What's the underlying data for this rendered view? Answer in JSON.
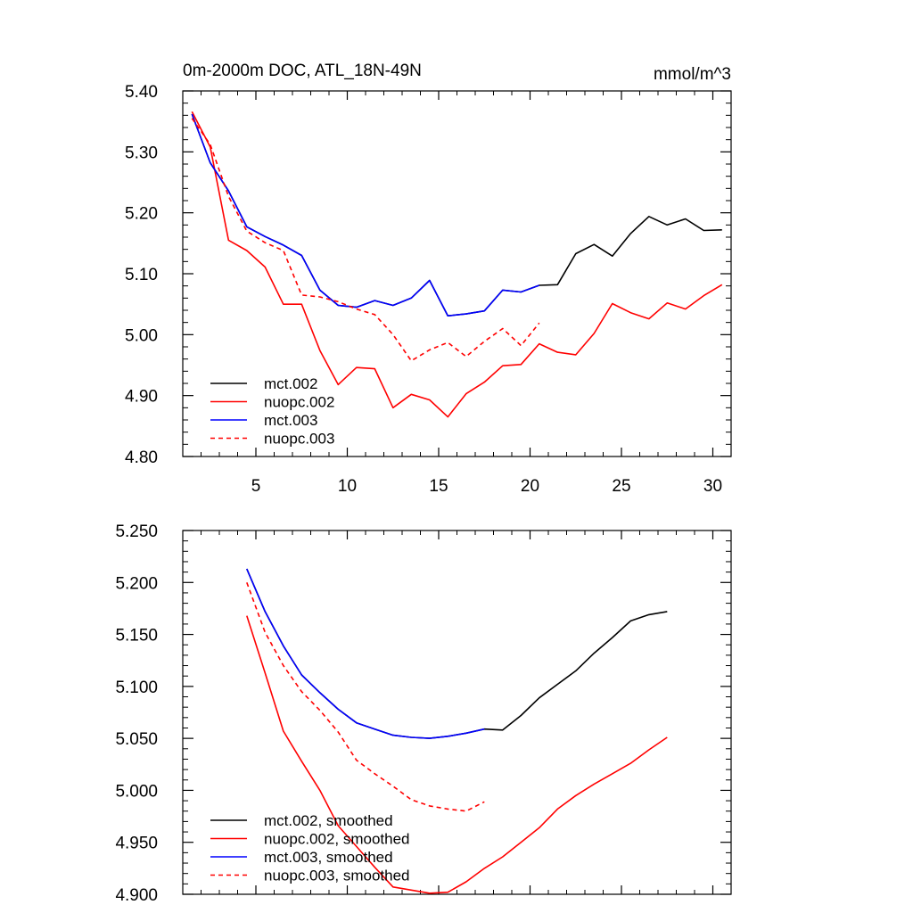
{
  "chart_data": [
    {
      "type": "line",
      "title": "0m-2000m DOC, ATL_18N-49N",
      "units_label": "mmol/m^3",
      "xlim": [
        1,
        31
      ],
      "ylim": [
        4.8,
        5.4
      ],
      "xticks": [
        5,
        10,
        15,
        20,
        25,
        30
      ],
      "xtick_labels": [
        "5",
        "10",
        "15",
        "20",
        "25",
        "30"
      ],
      "yticks": [
        4.8,
        4.9,
        5.0,
        5.1,
        5.2,
        5.3,
        5.4
      ],
      "ytick_labels": [
        "4.80",
        "4.90",
        "5.00",
        "5.10",
        "5.20",
        "5.30",
        "5.40"
      ],
      "legend_position": "bottom-left",
      "series": [
        {
          "name": "mct.002",
          "color": "#000000",
          "dash": "solid",
          "x": [
            1.5,
            2.5,
            3.5,
            4.5,
            5.5,
            6.5,
            7.5,
            8.5,
            9.5,
            10.5,
            11.5,
            12.5,
            13.5,
            14.5,
            15.5,
            16.5,
            17.5,
            18.5,
            19.5,
            20.5,
            21.5,
            22.5,
            23.5,
            24.5,
            25.5,
            26.5,
            27.5,
            28.5,
            29.5,
            30.5
          ],
          "values": [
            5.362,
            5.282,
            5.236,
            5.177,
            5.161,
            5.147,
            5.13,
            5.073,
            5.048,
            5.045,
            5.056,
            5.048,
            5.06,
            5.089,
            5.031,
            5.034,
            5.039,
            5.073,
            5.07,
            5.081,
            5.082,
            5.133,
            5.148,
            5.129,
            5.166,
            5.194,
            5.18,
            5.19,
            5.171,
            5.172
          ]
        },
        {
          "name": "nuopc.002",
          "color": "#ff0000",
          "dash": "solid",
          "x": [
            1.5,
            2.5,
            3.5,
            4.5,
            5.5,
            6.5,
            7.5,
            8.5,
            9.5,
            10.5,
            11.5,
            12.5,
            13.5,
            14.5,
            15.5,
            16.5,
            17.5,
            18.5,
            19.5,
            20.5,
            21.5,
            22.5,
            23.5,
            24.5,
            25.5,
            26.5,
            27.5,
            28.5,
            29.5,
            30.5
          ],
          "values": [
            5.366,
            5.308,
            5.155,
            5.138,
            5.111,
            5.05,
            5.05,
            4.974,
            4.918,
            4.946,
            4.944,
            4.88,
            4.902,
            4.893,
            4.865,
            4.903,
            4.922,
            4.949,
            4.951,
            4.985,
            4.971,
            4.967,
            5.002,
            5.051,
            5.036,
            5.026,
            5.052,
            5.042,
            5.064,
            5.082
          ]
        },
        {
          "name": "mct.003",
          "color": "#0000ff",
          "dash": "solid",
          "x": [
            1.5,
            2.5,
            3.5,
            4.5,
            5.5,
            6.5,
            7.5,
            8.5,
            9.5,
            10.5,
            11.5,
            12.5,
            13.5,
            14.5,
            15.5,
            16.5,
            17.5,
            18.5,
            19.5,
            20.5
          ],
          "values": [
            5.362,
            5.282,
            5.236,
            5.177,
            5.161,
            5.147,
            5.13,
            5.073,
            5.048,
            5.045,
            5.056,
            5.048,
            5.06,
            5.089,
            5.031,
            5.034,
            5.039,
            5.073,
            5.07,
            5.081
          ]
        },
        {
          "name": "nuopc.003",
          "color": "#ff0000",
          "dash": "dashed",
          "x": [
            1.5,
            2.5,
            3.5,
            4.5,
            5.5,
            6.5,
            7.5,
            8.5,
            9.5,
            10.5,
            11.5,
            12.5,
            13.5,
            14.5,
            15.5,
            16.5,
            17.5,
            18.5,
            19.5,
            20.5
          ],
          "values": [
            5.355,
            5.312,
            5.227,
            5.17,
            5.151,
            5.138,
            5.065,
            5.062,
            5.054,
            5.042,
            5.033,
            5.0,
            4.957,
            4.975,
            4.987,
            4.964,
            4.989,
            5.01,
            4.982,
            5.019
          ]
        }
      ]
    },
    {
      "type": "line",
      "title": "",
      "xlim": [
        1,
        31
      ],
      "ylim": [
        4.9,
        5.25
      ],
      "xticks": [
        5,
        10,
        15,
        20,
        25,
        30
      ],
      "xtick_labels": [],
      "yticks": [
        4.9,
        4.95,
        5.0,
        5.05,
        5.1,
        5.15,
        5.2,
        5.25
      ],
      "ytick_labels": [
        "4.900",
        "4.950",
        "5.000",
        "5.050",
        "5.100",
        "5.150",
        "5.200",
        "5.250"
      ],
      "legend_position": "bottom-left",
      "series": [
        {
          "name": "mct.002, smoothed",
          "color": "#000000",
          "dash": "solid",
          "x": [
            4.5,
            5.5,
            6.5,
            7.5,
            8.5,
            9.5,
            10.5,
            11.5,
            12.5,
            13.5,
            14.5,
            15.5,
            16.5,
            17.5,
            18.5,
            19.5,
            20.5,
            21.5,
            22.5,
            23.5,
            24.5,
            25.5,
            26.5,
            27.5
          ],
          "values": [
            5.213,
            5.172,
            5.139,
            5.111,
            5.094,
            5.078,
            5.065,
            5.059,
            5.053,
            5.051,
            5.05,
            5.052,
            5.055,
            5.059,
            5.058,
            5.072,
            5.089,
            5.102,
            5.115,
            5.132,
            5.147,
            5.163,
            5.169,
            5.172
          ]
        },
        {
          "name": "nuopc.002, smoothed",
          "color": "#ff0000",
          "dash": "solid",
          "x": [
            4.5,
            5.5,
            6.5,
            7.5,
            8.5,
            9.5,
            10.5,
            11.5,
            12.5,
            13.5,
            14.5,
            15.5,
            16.5,
            17.5,
            18.5,
            19.5,
            20.5,
            21.5,
            22.5,
            23.5,
            24.5,
            25.5,
            26.5,
            27.5
          ],
          "values": [
            5.168,
            5.113,
            5.057,
            5.028,
            5.0,
            4.966,
            4.946,
            4.926,
            4.907,
            4.904,
            4.901,
            4.902,
            4.912,
            4.925,
            4.936,
            4.95,
            4.964,
            4.982,
            4.995,
            5.006,
            5.016,
            5.026,
            5.039,
            5.051
          ]
        },
        {
          "name": "mct.003, smoothed",
          "color": "#0000ff",
          "dash": "solid",
          "x": [
            4.5,
            5.5,
            6.5,
            7.5,
            8.5,
            9.5,
            10.5,
            11.5,
            12.5,
            13.5,
            14.5,
            15.5,
            16.5,
            17.5
          ],
          "values": [
            5.213,
            5.172,
            5.139,
            5.111,
            5.094,
            5.078,
            5.065,
            5.059,
            5.053,
            5.051,
            5.05,
            5.052,
            5.055,
            5.059
          ]
        },
        {
          "name": "nuopc.003, smoothed",
          "color": "#ff0000",
          "dash": "dashed",
          "x": [
            4.5,
            5.5,
            6.5,
            7.5,
            8.5,
            9.5,
            10.5,
            11.5,
            12.5,
            13.5,
            14.5,
            15.5,
            16.5,
            17.5
          ],
          "values": [
            5.2,
            5.152,
            5.12,
            5.095,
            5.077,
            5.056,
            5.029,
            5.016,
            5.004,
            4.991,
            4.985,
            4.982,
            4.98,
            4.989
          ]
        }
      ]
    }
  ]
}
